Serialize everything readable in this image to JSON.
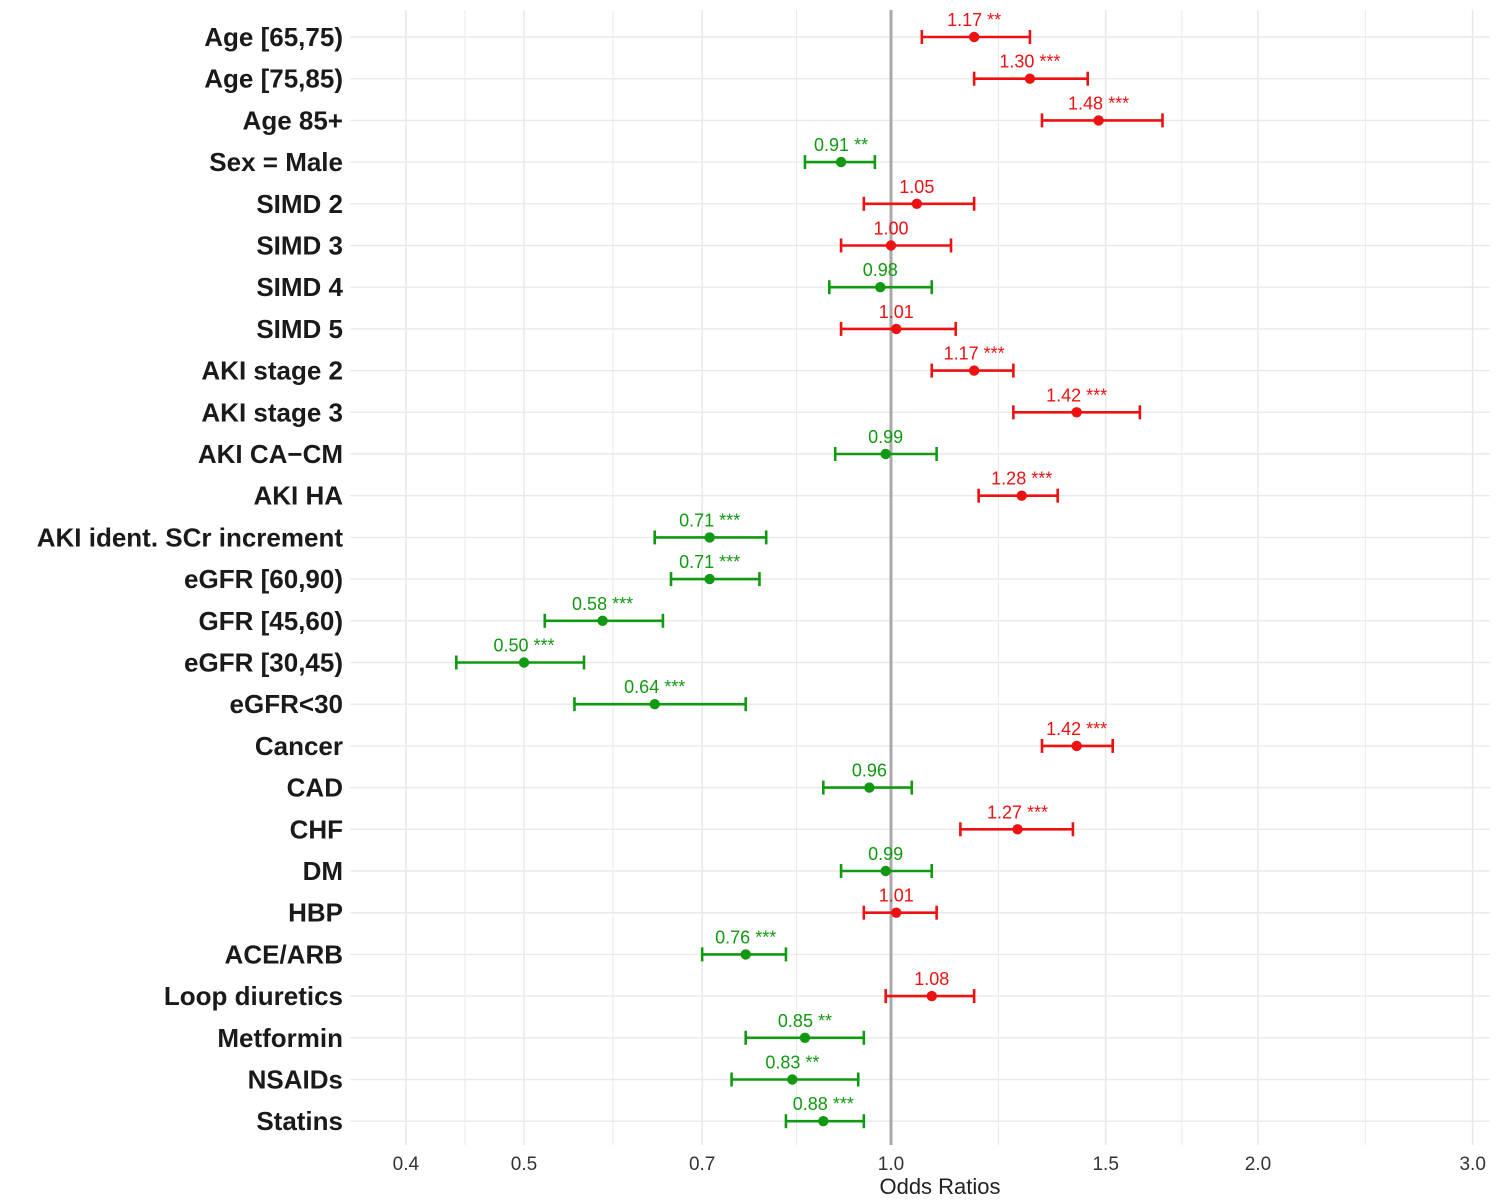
{
  "chart_data": {
    "type": "forest",
    "xlabel": "Odds Ratios",
    "x_scale": "log",
    "xlim": [
      0.36,
      3.1
    ],
    "x_ticks": [
      0.4,
      0.5,
      0.7,
      1.0,
      1.5,
      2.0,
      3.0
    ],
    "x_tick_labels": [
      "0.4",
      "0.5",
      "0.7",
      "1.0",
      "1.5",
      "2.0",
      "3.0"
    ],
    "reference_line": 1.0,
    "grid": true,
    "colors": {
      "increased": "#ee1111",
      "decreased": "#119911",
      "reference": "#aaaaaa",
      "grid": "#e9e9e9"
    },
    "rows": [
      {
        "label": "Age [65,75)",
        "or": 1.17,
        "lower": 1.06,
        "upper": 1.3,
        "text": "1.17 **",
        "direction": "increased"
      },
      {
        "label": "Age [75,85)",
        "or": 1.3,
        "lower": 1.17,
        "upper": 1.45,
        "text": "1.30 ***",
        "direction": "increased"
      },
      {
        "label": "Age 85+",
        "or": 1.48,
        "lower": 1.33,
        "upper": 1.67,
        "text": "1.48 ***",
        "direction": "increased"
      },
      {
        "label": "Sex = Male",
        "or": 0.91,
        "lower": 0.85,
        "upper": 0.97,
        "text": "0.91 **",
        "direction": "decreased"
      },
      {
        "label": "SIMD 2",
        "or": 1.05,
        "lower": 0.95,
        "upper": 1.17,
        "text": "1.05",
        "direction": "increased"
      },
      {
        "label": "SIMD 3",
        "or": 1.0,
        "lower": 0.91,
        "upper": 1.12,
        "text": "1.00",
        "direction": "increased"
      },
      {
        "label": "SIMD 4",
        "or": 0.98,
        "lower": 0.89,
        "upper": 1.08,
        "text": "0.98",
        "direction": "decreased"
      },
      {
        "label": "SIMD 5",
        "or": 1.01,
        "lower": 0.91,
        "upper": 1.13,
        "text": "1.01",
        "direction": "increased"
      },
      {
        "label": "AKI stage 2",
        "or": 1.17,
        "lower": 1.08,
        "upper": 1.26,
        "text": "1.17 ***",
        "direction": "increased"
      },
      {
        "label": "AKI stage 3",
        "or": 1.42,
        "lower": 1.26,
        "upper": 1.6,
        "text": "1.42 ***",
        "direction": "increased"
      },
      {
        "label": "AKI CA−CM",
        "or": 0.99,
        "lower": 0.9,
        "upper": 1.09,
        "text": "0.99",
        "direction": "decreased"
      },
      {
        "label": "AKI HA",
        "or": 1.28,
        "lower": 1.18,
        "upper": 1.37,
        "text": "1.28 ***",
        "direction": "increased"
      },
      {
        "label": "AKI ident. SCr increment",
        "or": 0.71,
        "lower": 0.64,
        "upper": 0.79,
        "text": "0.71 ***",
        "direction": "decreased"
      },
      {
        "label": "eGFR [60,90)",
        "or": 0.71,
        "lower": 0.66,
        "upper": 0.78,
        "text": "0.71 ***",
        "direction": "decreased"
      },
      {
        "label": "GFR [45,60)",
        "or": 0.58,
        "lower": 0.52,
        "upper": 0.65,
        "text": "0.58 ***",
        "direction": "decreased"
      },
      {
        "label": "eGFR [30,45)",
        "or": 0.5,
        "lower": 0.44,
        "upper": 0.56,
        "text": "0.50 ***",
        "direction": "decreased"
      },
      {
        "label": "eGFR<30",
        "or": 0.64,
        "lower": 0.55,
        "upper": 0.76,
        "text": "0.64 ***",
        "direction": "decreased"
      },
      {
        "label": "Cancer",
        "or": 1.42,
        "lower": 1.33,
        "upper": 1.52,
        "text": "1.42 ***",
        "direction": "increased"
      },
      {
        "label": "CAD",
        "or": 0.96,
        "lower": 0.88,
        "upper": 1.04,
        "text": "0.96",
        "direction": "decreased"
      },
      {
        "label": "CHF",
        "or": 1.27,
        "lower": 1.14,
        "upper": 1.41,
        "text": "1.27 ***",
        "direction": "increased"
      },
      {
        "label": "DM",
        "or": 0.99,
        "lower": 0.91,
        "upper": 1.08,
        "text": "0.99",
        "direction": "decreased"
      },
      {
        "label": "HBP",
        "or": 1.01,
        "lower": 0.95,
        "upper": 1.09,
        "text": "1.01",
        "direction": "increased"
      },
      {
        "label": "ACE/ARB",
        "or": 0.76,
        "lower": 0.7,
        "upper": 0.82,
        "text": "0.76 ***",
        "direction": "decreased"
      },
      {
        "label": "Loop diuretics",
        "or": 1.08,
        "lower": 0.99,
        "upper": 1.17,
        "text": "1.08",
        "direction": "increased"
      },
      {
        "label": "Metformin",
        "or": 0.85,
        "lower": 0.76,
        "upper": 0.95,
        "text": "0.85 **",
        "direction": "decreased"
      },
      {
        "label": "NSAIDs",
        "or": 0.83,
        "lower": 0.74,
        "upper": 0.94,
        "text": "0.83 **",
        "direction": "decreased"
      },
      {
        "label": "Statins",
        "or": 0.88,
        "lower": 0.82,
        "upper": 0.95,
        "text": "0.88 ***",
        "direction": "decreased"
      }
    ]
  }
}
